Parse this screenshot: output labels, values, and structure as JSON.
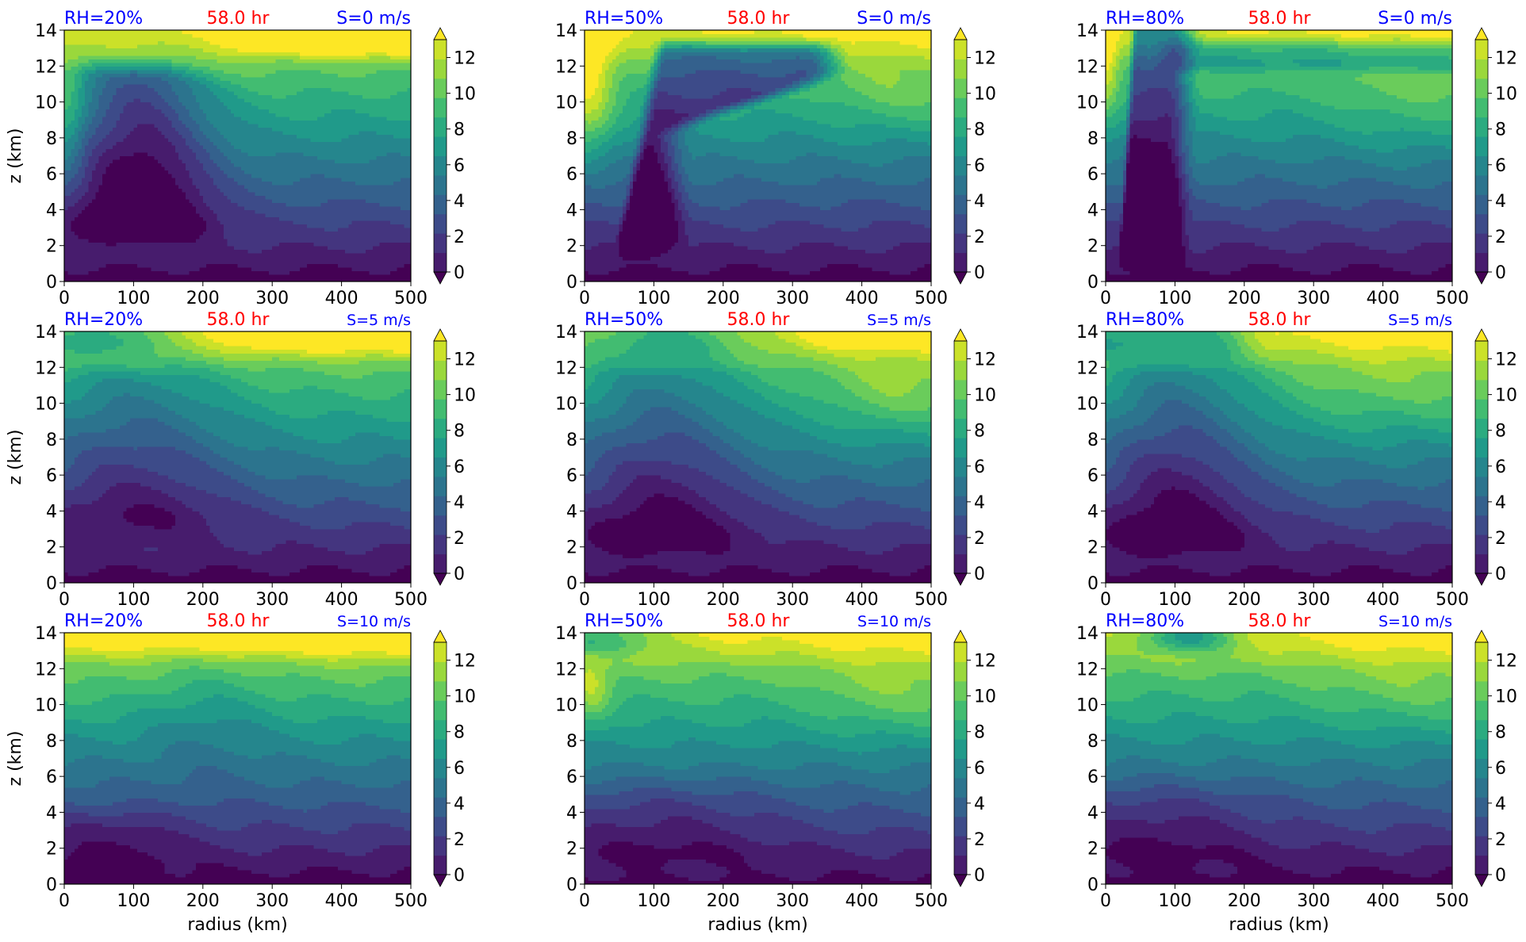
{
  "chart_data": {
    "type": "contourf",
    "grid": {
      "rows": 3,
      "cols": 3
    },
    "xlabel": "radius (km)",
    "ylabel": "z (km)",
    "xlim": [
      0,
      500
    ],
    "ylim": [
      0,
      14
    ],
    "x_ticks": [
      "0",
      "100",
      "200",
      "300",
      "400",
      "500"
    ],
    "y_ticks": [
      "0",
      "2",
      "4",
      "6",
      "8",
      "10",
      "12",
      "14"
    ],
    "colorbar": {
      "levels": [
        0,
        1,
        2,
        3,
        4,
        5,
        6,
        7,
        8,
        9,
        10,
        11,
        12,
        13
      ],
      "tick_labels": [
        "0",
        "2",
        "4",
        "6",
        "8",
        "10",
        "12"
      ],
      "extend": "both",
      "colormap": "viridis"
    },
    "colors": {
      "rh_label": "#0000ff",
      "time_label": "#ff0000",
      "shear_label": "#0000ff",
      "viridis": [
        "#440154",
        "#482878",
        "#3e4989",
        "#31688e",
        "#26828e",
        "#1f9e89",
        "#35b779",
        "#6ece58",
        "#b5de2b",
        "#fde725"
      ]
    },
    "panels": [
      {
        "rh": "RH=20%",
        "time": "58.0 hr",
        "shear": "S=0 m/s"
      },
      {
        "rh": "RH=50%",
        "time": "58.0 hr",
        "shear": "S=0 m/s"
      },
      {
        "rh": "RH=80%",
        "time": "58.0 hr",
        "shear": "S=0 m/s"
      },
      {
        "rh": "RH=20%",
        "time": "58.0 hr",
        "shear": "S=5 m/s"
      },
      {
        "rh": "RH=50%",
        "time": "58.0 hr",
        "shear": "S=5 m/s"
      },
      {
        "rh": "RH=80%",
        "time": "58.0 hr",
        "shear": "S=5 m/s"
      },
      {
        "rh": "RH=20%",
        "time": "58.0 hr",
        "shear": "S=10 m/s"
      },
      {
        "rh": "RH=50%",
        "time": "58.0 hr",
        "shear": "S=10 m/s"
      },
      {
        "rh": "RH=80%",
        "time": "58.0 hr",
        "shear": "S=10 m/s"
      }
    ]
  }
}
